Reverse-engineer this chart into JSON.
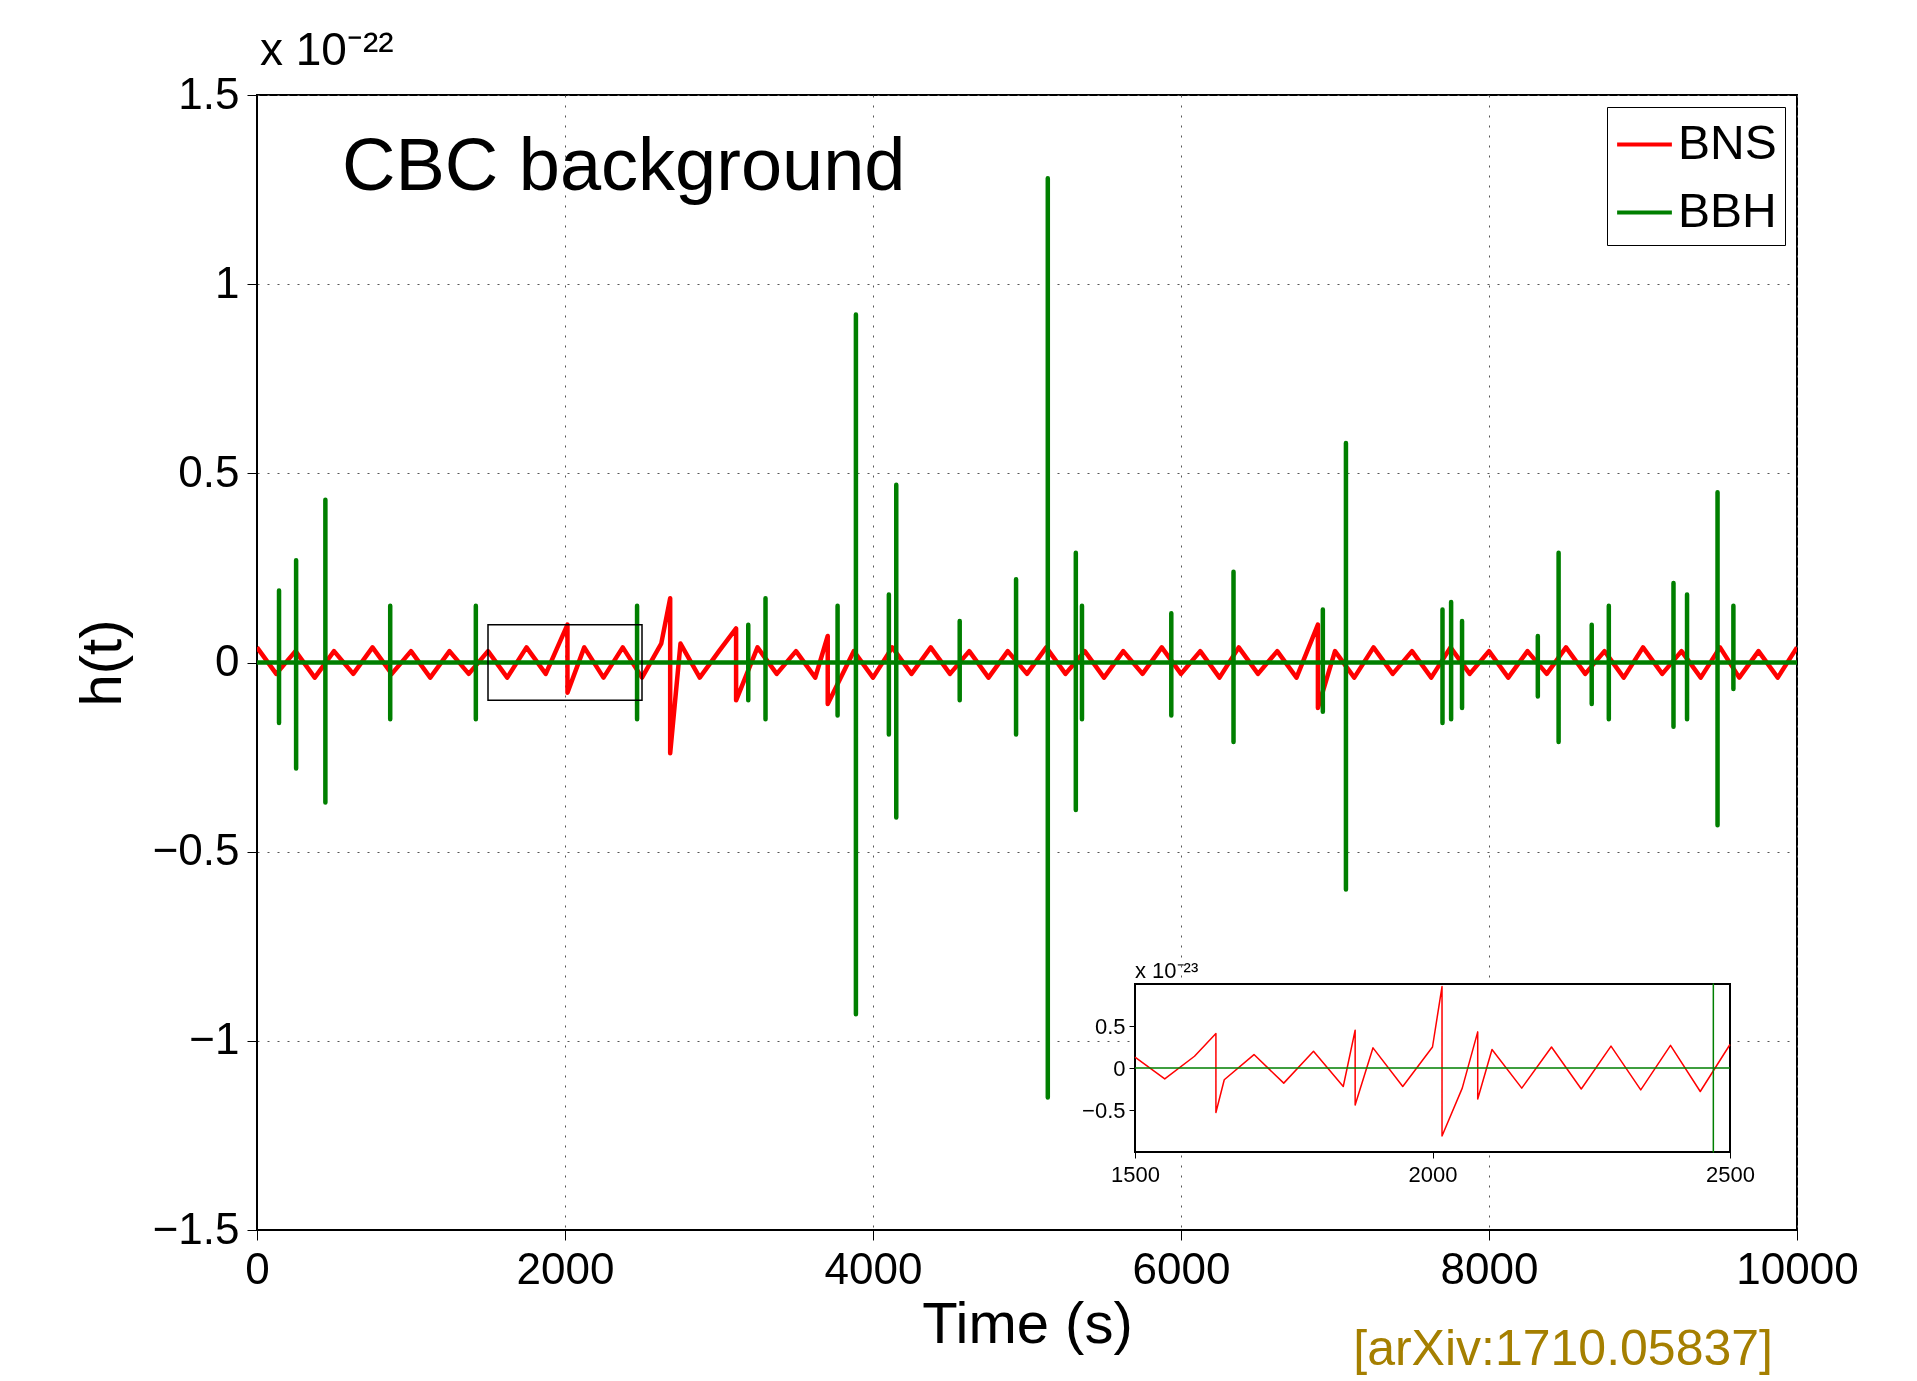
{
  "chart_data": [
    {
      "type": "line",
      "title": "CBC background",
      "xlabel": "Time (s)",
      "ylabel": "h(t)",
      "xlim": [
        0,
        10000
      ],
      "ylim": [
        -1.5,
        1.5
      ],
      "xticks": [
        0,
        2000,
        4000,
        6000,
        8000,
        10000
      ],
      "yticks": [
        -1.5,
        -1,
        -0.5,
        0,
        0.5,
        1,
        1.5
      ],
      "grid": true,
      "legend": "top right",
      "annotations": [
        "x 10⁻²²",
        "[arXiv:1710.05837]"
      ],
      "series": [
        {
          "name": "BNS",
          "color": "#ff0000",
          "x": [
            0,
            125,
            250,
            375,
            500,
            625,
            750,
            875,
            1000,
            1125,
            1250,
            1375,
            1500,
            1625,
            1750,
            1875,
            2016,
            2016,
            2125,
            2250,
            2375,
            2500,
            2625,
            2683,
            2683,
            2750,
            2875,
            3000,
            3111,
            3111,
            3250,
            3375,
            3500,
            3625,
            3706,
            3706,
            3875,
            4000,
            4125,
            4250,
            4375,
            4500,
            4625,
            4750,
            4875,
            5000,
            5125,
            5250,
            5375,
            5500,
            5625,
            5750,
            5875,
            6000,
            6125,
            6250,
            6375,
            6500,
            6625,
            6750,
            6889,
            6889,
            7000,
            7125,
            7250,
            7375,
            7500,
            7625,
            7750,
            7875,
            8000,
            8125,
            8250,
            8375,
            8500,
            8625,
            8750,
            8875,
            9000,
            9125,
            9250,
            9375,
            9500,
            9625,
            9750,
            9875,
            10000
          ],
          "values": [
            0.04,
            -0.03,
            0.03,
            -0.04,
            0.03,
            -0.03,
            0.04,
            -0.03,
            0.03,
            -0.04,
            0.03,
            -0.03,
            0.03,
            -0.04,
            0.04,
            -0.03,
            0.1,
            -0.08,
            0.04,
            -0.04,
            0.04,
            -0.04,
            0.05,
            0.17,
            -0.24,
            0.05,
            -0.04,
            0.03,
            0.09,
            -0.1,
            0.04,
            -0.03,
            0.03,
            -0.04,
            0.07,
            -0.11,
            0.03,
            -0.04,
            0.04,
            -0.03,
            0.04,
            -0.03,
            0.03,
            -0.04,
            0.03,
            -0.03,
            0.04,
            -0.03,
            0.03,
            -0.04,
            0.03,
            -0.03,
            0.04,
            -0.03,
            0.03,
            -0.04,
            0.04,
            -0.03,
            0.03,
            -0.04,
            0.1,
            -0.12,
            0.03,
            -0.04,
            0.04,
            -0.03,
            0.03,
            -0.04,
            0.04,
            -0.03,
            0.03,
            -0.04,
            0.03,
            -0.03,
            0.04,
            -0.03,
            0.03,
            -0.04,
            0.04,
            -0.03,
            0.03,
            -0.04,
            0.04,
            -0.04,
            0.03,
            -0.04,
            0.04
          ]
        },
        {
          "name": "BBH",
          "color": "#007f00",
          "x": [
            0,
            143,
            143,
            143,
            143,
            254,
            254,
            254,
            254,
            444,
            444,
            444,
            444,
            865,
            865,
            865,
            865,
            1421,
            1421,
            1421,
            1421,
            2468,
            2468,
            2468,
            2468,
            3190,
            3190,
            3190,
            3190,
            3302,
            3302,
            3302,
            3302,
            3770,
            3770,
            3770,
            3770,
            3889,
            3889,
            3889,
            3889,
            4103,
            4103,
            4103,
            4103,
            4151,
            4151,
            4151,
            4151,
            4563,
            4563,
            4563,
            4563,
            4929,
            4929,
            4929,
            4929,
            5135,
            5135,
            5135,
            5135,
            5317,
            5317,
            5317,
            5317,
            5357,
            5357,
            5357,
            5357,
            5937,
            5937,
            5937,
            5937,
            6341,
            6341,
            6341,
            6341,
            6921,
            6921,
            6921,
            6921,
            7071,
            7071,
            7071,
            7071,
            7698,
            7698,
            7698,
            7698,
            7754,
            7754,
            7754,
            7754,
            7825,
            7825,
            7825,
            7825,
            8317,
            8317,
            8317,
            8317,
            8452,
            8452,
            8452,
            8452,
            8667,
            8667,
            8667,
            8667,
            8778,
            8778,
            8778,
            8778,
            9198,
            9198,
            9198,
            9198,
            9286,
            9286,
            9286,
            9286,
            9484,
            9484,
            9484,
            9484,
            9587,
            9587,
            9587,
            9587,
            10000
          ],
          "values": [
            0,
            0,
            0.19,
            -0.16,
            0,
            0,
            0.27,
            -0.28,
            0,
            0,
            0.43,
            -0.37,
            0,
            0,
            0.15,
            -0.15,
            0,
            0,
            0.15,
            -0.15,
            0,
            0,
            0.15,
            -0.15,
            0,
            0,
            0.1,
            -0.1,
            0,
            0,
            0.17,
            -0.15,
            0,
            0,
            0.15,
            -0.14,
            0,
            0,
            0.92,
            -0.93,
            0,
            0,
            0.18,
            -0.19,
            0,
            0,
            0.47,
            -0.41,
            0,
            0,
            0.11,
            -0.1,
            0,
            0,
            0.22,
            -0.19,
            0,
            0,
            1.28,
            -1.15,
            0,
            0,
            0.29,
            -0.39,
            0,
            0,
            0.15,
            -0.15,
            0,
            0,
            0.13,
            -0.14,
            0,
            0,
            0.24,
            -0.21,
            0,
            0,
            0.14,
            -0.13,
            0,
            0,
            0.58,
            -0.6,
            0,
            0,
            0.14,
            -0.16,
            0,
            0,
            0.16,
            -0.15,
            0,
            0,
            0.11,
            -0.12,
            0,
            0,
            0.07,
            -0.09,
            0,
            0,
            0.29,
            -0.21,
            0,
            0,
            0.1,
            -0.11,
            0,
            0,
            0.15,
            -0.15,
            0,
            0,
            0.21,
            -0.17,
            0,
            0,
            0.18,
            -0.15,
            0,
            0,
            0.45,
            -0.43,
            0,
            0,
            0.15,
            -0.07,
            0,
            0
          ]
        }
      ]
    },
    {
      "type": "line",
      "xlim": [
        1500,
        2500
      ],
      "ylim": [
        -1,
        1
      ],
      "xticks": [
        1500,
        2000,
        2500
      ],
      "yticks": [
        -0.5,
        0,
        0.5
      ],
      "annotations": [
        "x 10⁻²³"
      ],
      "series": [
        {
          "color": "#ff0000",
          "x": [
            1500,
            1550,
            1600,
            1636,
            1636,
            1650,
            1700,
            1750,
            1800,
            1850,
            1870,
            1870,
            1900,
            1950,
            2000,
            2016,
            2016,
            2050,
            2076,
            2076,
            2100,
            2150,
            2200,
            2250,
            2300,
            2350,
            2400,
            2450,
            2500
          ],
          "values": [
            0.13,
            -0.13,
            0.14,
            0.41,
            -0.53,
            -0.14,
            0.16,
            -0.18,
            0.2,
            -0.22,
            0.45,
            -0.44,
            0.24,
            -0.22,
            0.25,
            0.97,
            -0.81,
            -0.24,
            0.43,
            -0.37,
            0.22,
            -0.24,
            0.25,
            -0.25,
            0.26,
            -0.26,
            0.27,
            -0.28,
            0.28
          ]
        },
        {
          "color": "#007f00",
          "x": [
            1500,
            2472,
            2472,
            2472,
            2472,
            2500
          ],
          "values": [
            0,
            0,
            1,
            -1,
            0,
            0
          ]
        }
      ]
    }
  ]
}
